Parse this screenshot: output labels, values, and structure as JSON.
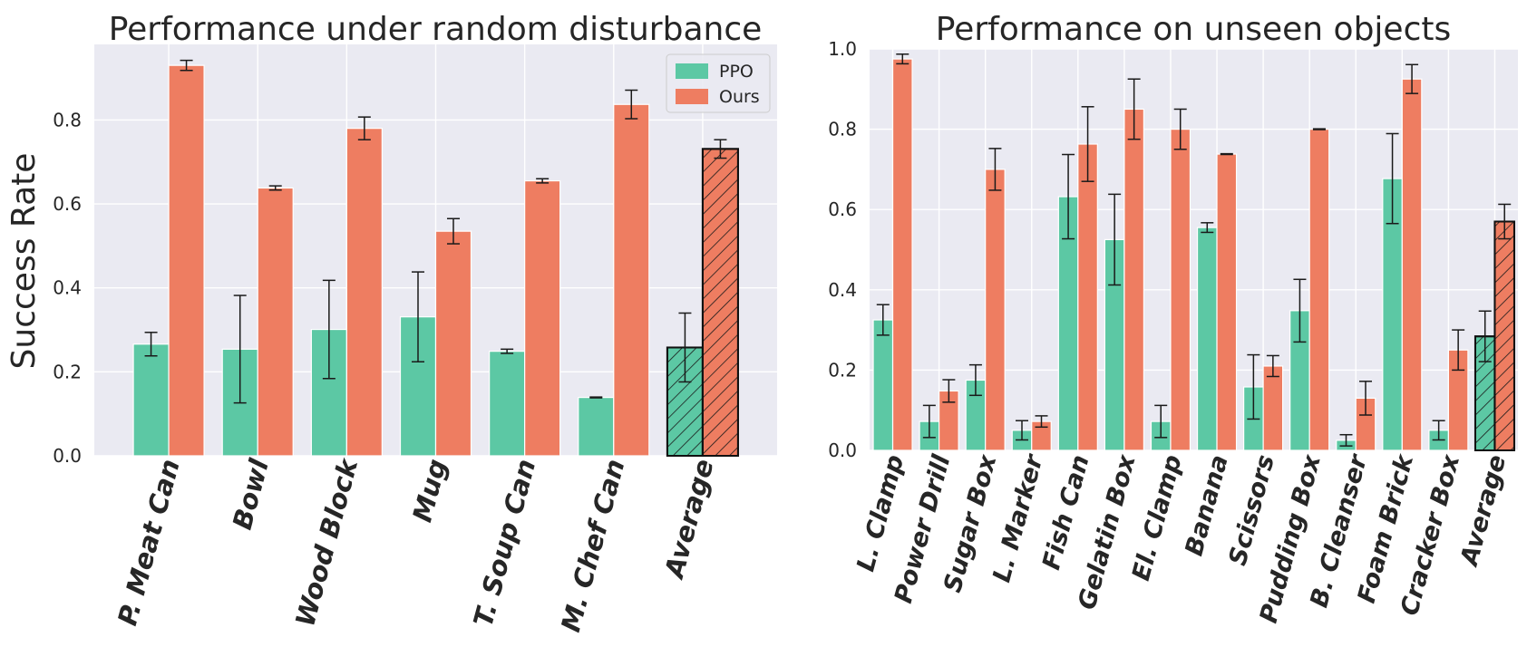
{
  "colors": {
    "ppo": "#5cc8a4",
    "ours": "#ee7d61",
    "panel_bg": "#eaeaf2",
    "grid": "#ffffff",
    "text": "#262626"
  },
  "chart_data": [
    {
      "type": "bar",
      "title": "Performance under random disturbance",
      "xlabel": "",
      "ylabel": "Success Rate",
      "ylim": [
        0,
        0.98
      ],
      "yticks": [
        "0.0",
        "0.2",
        "0.4",
        "0.6",
        "0.8"
      ],
      "grid": true,
      "legend": "top-right",
      "categories": [
        "P. Meat Can",
        "Bowl",
        "Wood Block",
        "Mug",
        "T. Soup Can",
        "M. Chef Can",
        "Average"
      ],
      "hatched_category": "Average",
      "series": [
        {
          "name": "PPO",
          "color_key": "ppo",
          "values": [
            0.266,
            0.254,
            0.301,
            0.331,
            0.249,
            0.139,
            0.258
          ],
          "errors": [
            0.028,
            0.128,
            0.117,
            0.107,
            0.005,
            0.001,
            0.082
          ]
        },
        {
          "name": "Ours",
          "color_key": "ours",
          "values": [
            0.93,
            0.638,
            0.78,
            0.535,
            0.655,
            0.837,
            0.731
          ],
          "errors": [
            0.012,
            0.005,
            0.027,
            0.03,
            0.005,
            0.034,
            0.022
          ]
        }
      ]
    },
    {
      "type": "bar",
      "title": "Performance on unseen objects",
      "xlabel": "",
      "ylabel": "",
      "ylim": [
        0,
        1.0
      ],
      "yticks": [
        "0.0",
        "0.2",
        "0.4",
        "0.6",
        "0.8",
        "1.0"
      ],
      "grid": true,
      "legend": "none",
      "categories": [
        "L. Clamp",
        "Power Drill",
        "Sugar Box",
        "L. Marker",
        "Fish Can",
        "Gelatin Box",
        "El. Clamp",
        "Banana",
        "Scissors",
        "Pudding Box",
        "B. Cleanser",
        "Foam Brick",
        "Cracker Box",
        "Average"
      ],
      "hatched_category": "Average",
      "series": [
        {
          "name": "PPO",
          "color_key": "ppo",
          "values": [
            0.325,
            0.072,
            0.175,
            0.05,
            0.632,
            0.525,
            0.072,
            0.555,
            0.158,
            0.348,
            0.025,
            0.677,
            0.05,
            0.284
          ],
          "errors": [
            0.038,
            0.04,
            0.038,
            0.024,
            0.105,
            0.113,
            0.04,
            0.012,
            0.08,
            0.078,
            0.014,
            0.112,
            0.024,
            0.063
          ]
        },
        {
          "name": "Ours",
          "color_key": "ours",
          "values": [
            0.975,
            0.148,
            0.7,
            0.072,
            0.763,
            0.85,
            0.8,
            0.738,
            0.21,
            0.8,
            0.13,
            0.925,
            0.25,
            0.57
          ],
          "errors": [
            0.012,
            0.028,
            0.052,
            0.014,
            0.093,
            0.075,
            0.05,
            0.001,
            0.026,
            0.001,
            0.042,
            0.036,
            0.05,
            0.043
          ]
        }
      ]
    }
  ]
}
